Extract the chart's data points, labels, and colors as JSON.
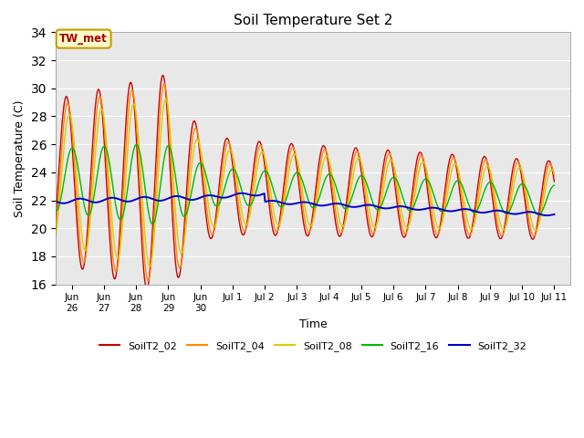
{
  "title": "Soil Temperature Set 2",
  "xlabel": "Time",
  "ylabel": "Soil Temperature (C)",
  "ylim": [
    16,
    34
  ],
  "yticks": [
    16,
    18,
    20,
    22,
    24,
    26,
    28,
    30,
    32,
    34
  ],
  "annotation_text": "TW_met",
  "annotation_color": "#aa0000",
  "annotation_bg": "#ffffcc",
  "annotation_border": "#cc9900",
  "plot_bg": "#e8e8e8",
  "series_colors": {
    "SoilT2_02": "#cc0000",
    "SoilT2_04": "#ff8800",
    "SoilT2_08": "#ddcc00",
    "SoilT2_16": "#00bb00",
    "SoilT2_32": "#0000cc"
  },
  "xtick_labels": [
    "Jun\n26",
    "Jun\n27",
    "Jun\n28",
    "Jun\n29",
    "Jun\n30",
    "Jul 1",
    "Jul 2",
    "Jul 3",
    "Jul 4",
    "Jul 5",
    "Jul 6",
    "Jul 7",
    "Jul 8",
    "Jul 9",
    "Jul 10",
    "Jul 11"
  ]
}
